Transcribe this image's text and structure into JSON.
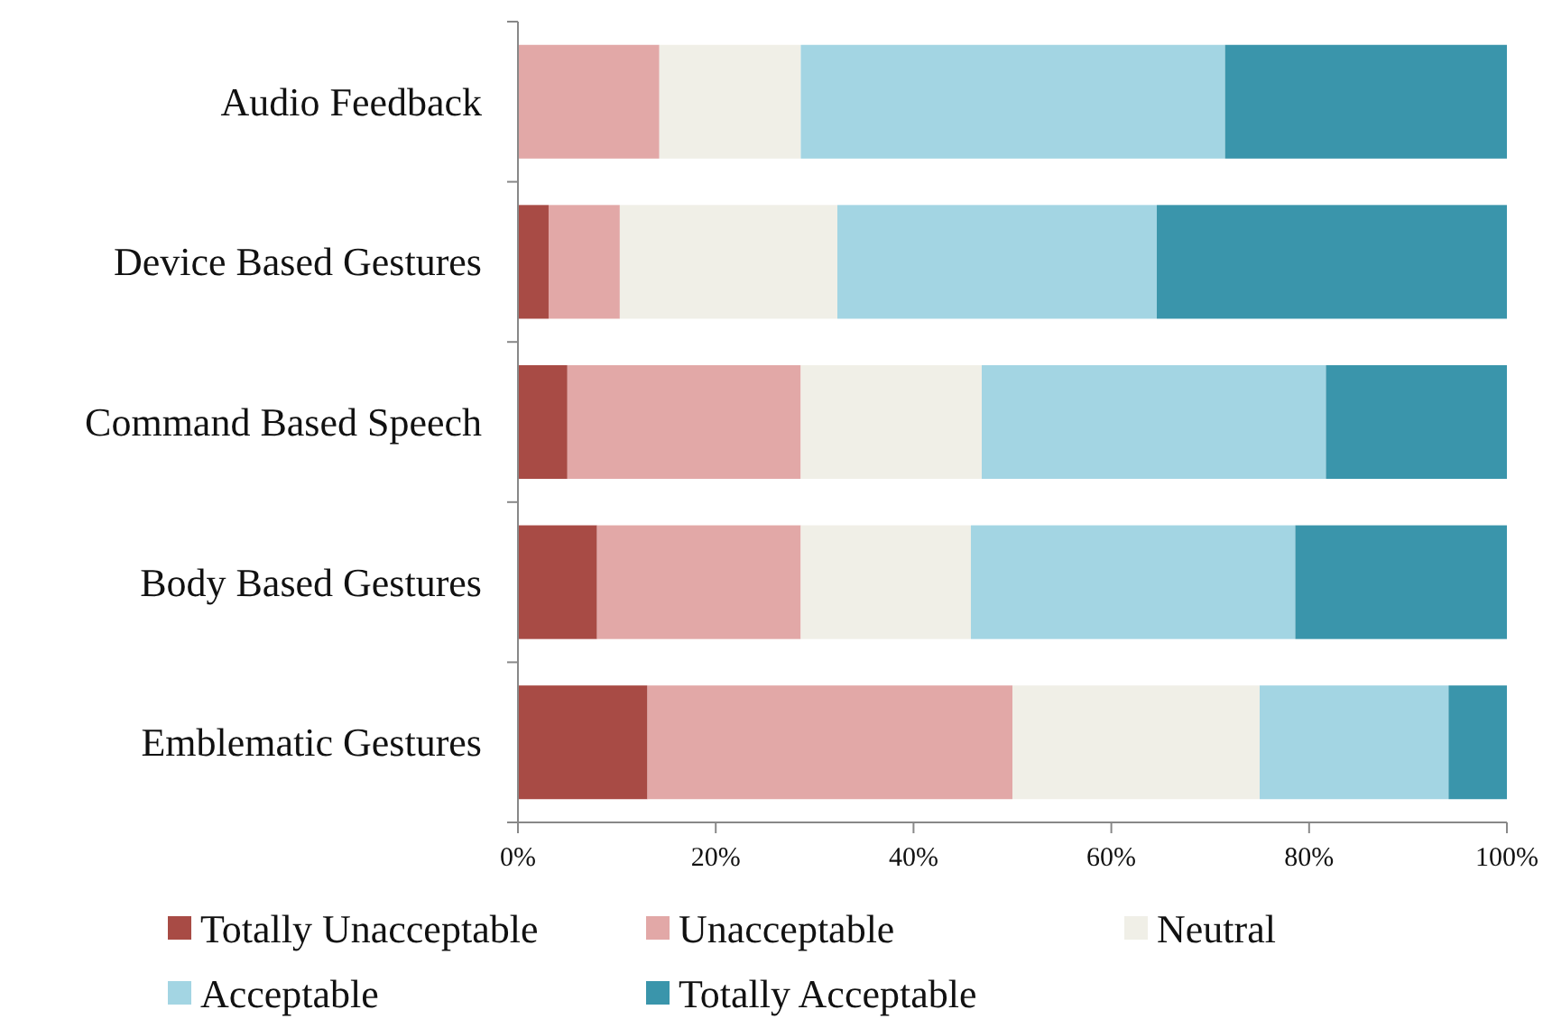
{
  "chart_data": {
    "type": "bar",
    "orientation": "horizontal",
    "stacked": true,
    "categories": [
      "Audio Feedback",
      "Device Based Gestures",
      "Command Based Speech",
      "Body Based Gestures",
      "Emblematic Gestures"
    ],
    "series": [
      {
        "name": "Totally Unacceptable",
        "color": "#a84b45",
        "values": [
          0,
          3.1,
          5.0,
          8.0,
          13.1
        ]
      },
      {
        "name": "Unacceptable",
        "color": "#e2a8a7",
        "values": [
          14.3,
          7.2,
          23.6,
          20.6,
          36.9
        ]
      },
      {
        "name": "Neutral",
        "color": "#f0efe7",
        "values": [
          14.3,
          22.0,
          18.3,
          17.2,
          25.0
        ]
      },
      {
        "name": "Acceptable",
        "color": "#a3d5e3",
        "values": [
          42.9,
          32.3,
          34.8,
          32.8,
          19.1
        ]
      },
      {
        "name": "Totally Acceptable",
        "color": "#3a95ab",
        "values": [
          28.5,
          35.4,
          18.3,
          21.4,
          5.9
        ]
      }
    ],
    "xlim": [
      0,
      100
    ],
    "xticks": [
      {
        "value": 0,
        "label": "0%"
      },
      {
        "value": 20,
        "label": "20%"
      },
      {
        "value": 40,
        "label": "40%"
      },
      {
        "value": 60,
        "label": "60%"
      },
      {
        "value": 80,
        "label": "80%"
      },
      {
        "value": 100,
        "label": "100%"
      }
    ],
    "grid": false,
    "legend": "bottom"
  }
}
